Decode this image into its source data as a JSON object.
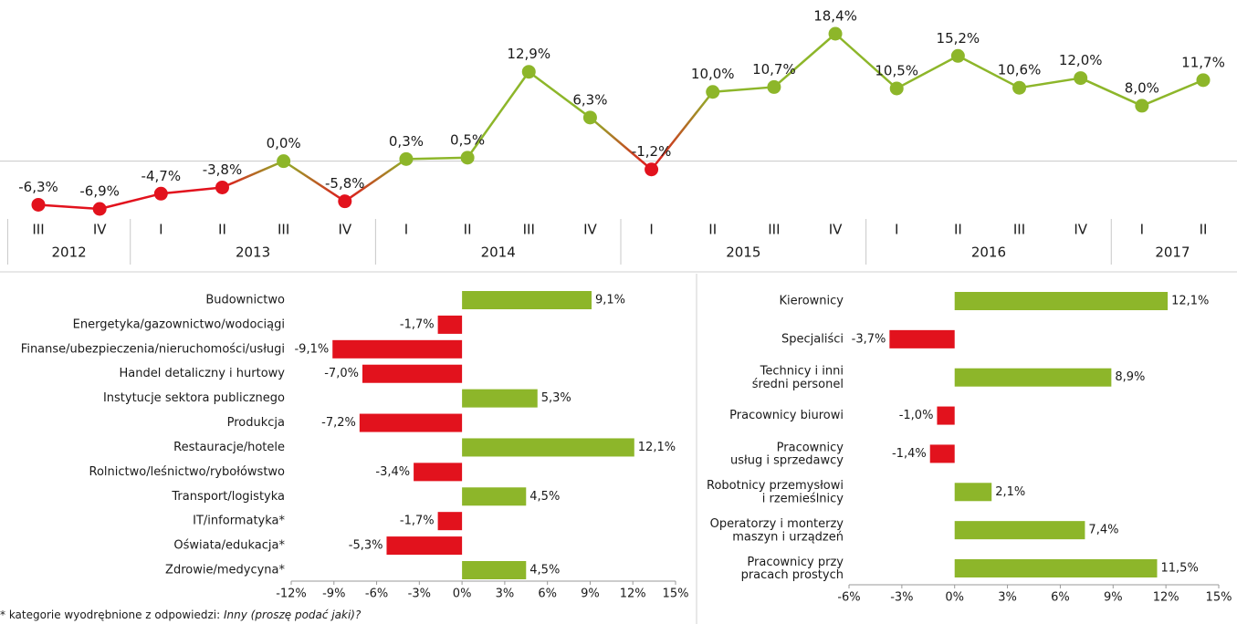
{
  "chart_data": [
    {
      "type": "line",
      "categories": [
        "III",
        "IV",
        "I",
        "II",
        "III",
        "IV",
        "I",
        "II",
        "III",
        "IV",
        "I",
        "II",
        "III",
        "IV",
        "I",
        "II",
        "III",
        "IV",
        "I",
        "II"
      ],
      "groups": [
        {
          "label": "2012",
          "size": 2
        },
        {
          "label": "2013",
          "size": 4
        },
        {
          "label": "2014",
          "size": 4
        },
        {
          "label": "2015",
          "size": 4
        },
        {
          "label": "2016",
          "size": 4
        },
        {
          "label": "2017",
          "size": 2
        }
      ],
      "values": [
        -6.3,
        -6.9,
        -4.7,
        -3.8,
        0.0,
        -5.8,
        0.3,
        0.5,
        12.9,
        6.3,
        -1.2,
        10.0,
        10.7,
        18.4,
        10.5,
        15.2,
        10.6,
        12.0,
        8.0,
        11.7
      ],
      "value_labels": [
        "-6,3%",
        "-6,9%",
        "-4,7%",
        "-3,8%",
        "0,0%",
        "-5,8%",
        "0,3%",
        "0,5%",
        "12,9%",
        "6,3%",
        "-1,2%",
        "10,0%",
        "10,7%",
        "18,4%",
        "10,5%",
        "15,2%",
        "10,6%",
        "12,0%",
        "8,0%",
        "11,7%"
      ],
      "positive_color": "#8db62a",
      "negative_color": "#e2121d"
    },
    {
      "type": "hbar",
      "categories": [
        "Budownictwo",
        "Energetyka/gazownictwo/wodociągi",
        "Finanse/ubezpieczenia/nieruchomości/usługi",
        "Handel detaliczny i hurtowy",
        "Instytucje sektora publicznego",
        "Produkcja",
        "Restauracje/hotele",
        "Rolnictwo/leśnictwo/rybołówstwo",
        "Transport/logistyka",
        "IT/informatyka*",
        "Oświata/edukacja*",
        "Zdrowie/medycyna*"
      ],
      "values": [
        9.1,
        -1.7,
        -9.1,
        -7.0,
        5.3,
        -7.2,
        12.1,
        -3.4,
        4.5,
        -1.7,
        -5.3,
        4.5
      ],
      "value_labels": [
        "9,1%",
        "-1,7%",
        "-9,1%",
        "-7,0%",
        "5,3%",
        "-7,2%",
        "12,1%",
        "-3,4%",
        "4,5%",
        "-1,7%",
        "-5,3%",
        "4,5%"
      ],
      "xlim": [
        -12,
        15
      ],
      "xticks": [
        {
          "value": -12,
          "label": "-12%"
        },
        {
          "value": -9,
          "label": "-9%"
        },
        {
          "value": -6,
          "label": "-6%"
        },
        {
          "value": -3,
          "label": "-3%"
        },
        {
          "value": 0,
          "label": "0%"
        },
        {
          "value": 3,
          "label": "3%"
        },
        {
          "value": 6,
          "label": "6%"
        },
        {
          "value": 9,
          "label": "9%"
        },
        {
          "value": 12,
          "label": "12%"
        },
        {
          "value": 15,
          "label": "15%"
        }
      ],
      "positive_color": "#8db62a",
      "negative_color": "#e2121d"
    },
    {
      "type": "hbar",
      "categories": [
        "Kierownicy",
        "Specjaliści",
        "Technicy i inni\nśredni personel",
        "Pracownicy biurowi",
        "Pracownicy\nusług i sprzedawcy",
        "Robotnicy przemysłowi\ni rzemieślnicy",
        "Operatorzy i monterzy\nmaszyn i urządzeń",
        "Pracownicy przy\npracach prostych"
      ],
      "values": [
        12.1,
        -3.7,
        8.9,
        -1.0,
        -1.4,
        2.1,
        7.4,
        11.5
      ],
      "value_labels": [
        "12,1%",
        "-3,7%",
        "8,9%",
        "-1,0%",
        "-1,4%",
        "2,1%",
        "7,4%",
        "11,5%"
      ],
      "xlim": [
        -6,
        15
      ],
      "xticks": [
        {
          "value": -6,
          "label": "-6%"
        },
        {
          "value": -3,
          "label": "-3%"
        },
        {
          "value": 0,
          "label": "0%"
        },
        {
          "value": 3,
          "label": "3%"
        },
        {
          "value": 6,
          "label": "6%"
        },
        {
          "value": 9,
          "label": "9%"
        },
        {
          "value": 12,
          "label": "12%"
        },
        {
          "value": 15,
          "label": "15%"
        }
      ],
      "positive_color": "#8db62a",
      "negative_color": "#e2121d"
    }
  ],
  "footnote": {
    "text": "* kategorie wyodrębnione z odpowiedzi: ",
    "emphasis": "Inny (proszę podać jaki)?"
  }
}
